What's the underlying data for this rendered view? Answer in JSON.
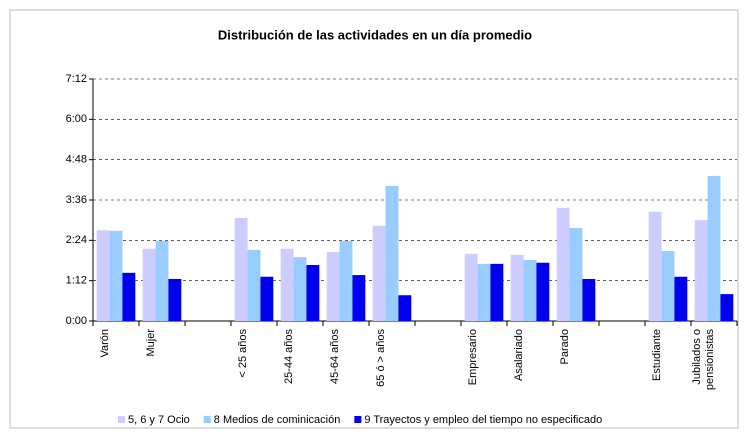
{
  "chart_data": {
    "type": "bar",
    "title": "Distribución de las actividades en un día promedio",
    "categories": [
      "Varón",
      "Mujer",
      null,
      "< 25 años",
      "25-44 años",
      "45-64 años",
      "65 ó > años",
      null,
      "Empresario",
      "Asalariado",
      "Parado",
      null,
      "Estudiante",
      "Jubilados o pensionistas"
    ],
    "series": [
      {
        "name": "5, 6 y 7 Ocio",
        "color": "#ccccff",
        "values": [
          162,
          129,
          null,
          184,
          129,
          123,
          170,
          null,
          120,
          118,
          202,
          null,
          195,
          180
        ]
      },
      {
        "name": "8 Medios de cominicación",
        "color": "#99ccff",
        "values": [
          161,
          143,
          null,
          127,
          114,
          143,
          241,
          null,
          102,
          109,
          166,
          null,
          125,
          259
        ]
      },
      {
        "name": "9 Trayectos y empleo del tiempo no especificado",
        "color": "#0000ee",
        "values": [
          86,
          75,
          null,
          79,
          100,
          82,
          46,
          null,
          102,
          104,
          75,
          null,
          79,
          48
        ]
      }
    ],
    "ylim": [
      0,
      432
    ],
    "yticks": [
      {
        "value": 0,
        "label": "0:00"
      },
      {
        "value": 72,
        "label": "1:12"
      },
      {
        "value": 144,
        "label": "2:24"
      },
      {
        "value": 216,
        "label": "3:36"
      },
      {
        "value": 288,
        "label": "4:48"
      },
      {
        "value": 360,
        "label": "6:00"
      },
      {
        "value": 432,
        "label": "7:12"
      }
    ],
    "grid": true,
    "legend": "bottom"
  }
}
